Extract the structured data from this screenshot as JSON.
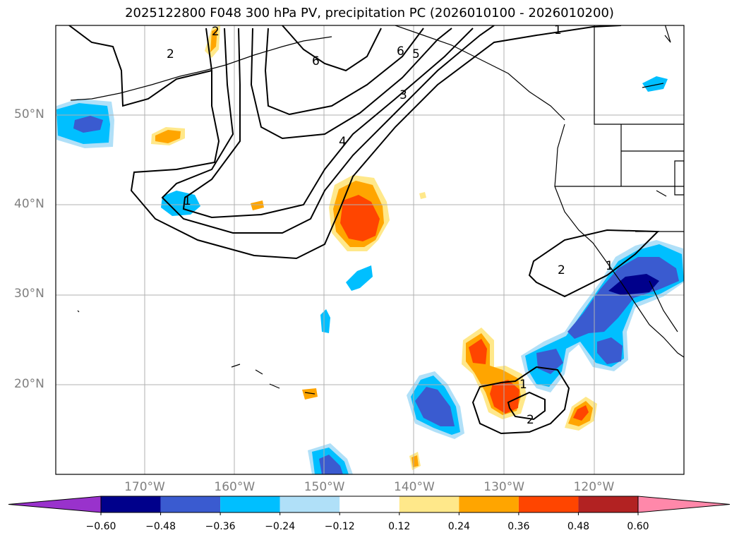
{
  "title": "2025122800 F048 300 hPa PV, precipitation PC (2026010100 - 2026010200)",
  "lat_labels": [
    {
      "text": "50°N",
      "lat": 50
    },
    {
      "text": "40°N",
      "lat": 40
    },
    {
      "text": "30°N",
      "lat": 30
    },
    {
      "text": "20°N",
      "lat": 20
    }
  ],
  "lon_labels": [
    {
      "text": "170°W",
      "lon": -170
    },
    {
      "text": "160°W",
      "lon": -160
    },
    {
      "text": "150°W",
      "lon": -150
    },
    {
      "text": "140°W",
      "lon": -140
    },
    {
      "text": "130°W",
      "lon": -130
    },
    {
      "text": "120°W",
      "lon": -120
    }
  ],
  "contour_labels": [
    "1",
    "2",
    "2",
    "3",
    "4",
    "5",
    "6",
    "6",
    "1",
    "2",
    "1",
    "2",
    "1"
  ],
  "colorbar": {
    "ticks": [
      "−0.60",
      "−0.48",
      "−0.36",
      "−0.24",
      "−0.12",
      "0.12",
      "0.24",
      "0.36",
      "0.48",
      "0.60"
    ],
    "colors": [
      "#9932cc",
      "#00008b",
      "#3a5bd0",
      "#00bfff",
      "#b0e0f8",
      "#ffffff",
      "#ffe88a",
      "#ffa500",
      "#ff4500",
      "#b22222",
      "#ff88aa"
    ]
  },
  "colors": {
    "grid": "#b0b0b0",
    "label": "#808080"
  }
}
